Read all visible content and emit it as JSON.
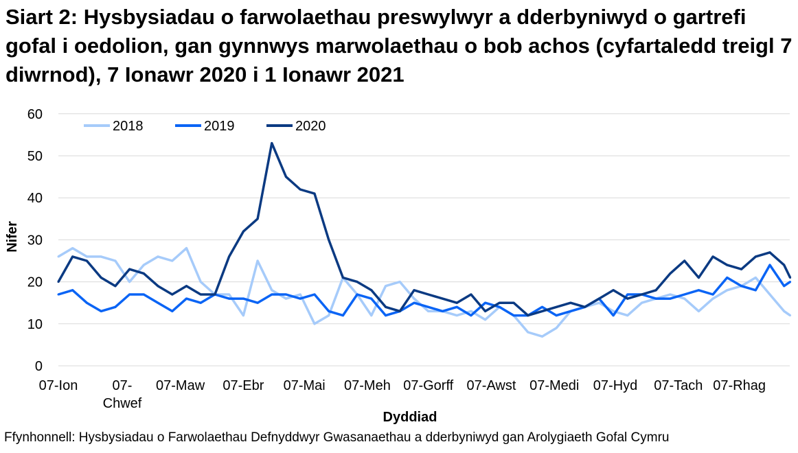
{
  "title": "Siart 2: Hysbysiadau o farwolaethau preswylwyr a dderbyniwyd o gartrefi gofal i oedolion, gan gynnwys marwolaethau o bob achos (cyfartaledd treigl 7 diwrnod), 7 Ionawr 2020 i 1 Ionawr 2021",
  "source": "Ffynhonnell: Hysbysiadau o Farwolaethau Defnyddwyr Gwasanaethau a dderbyniwyd gan Arolygiaeth Gofal Cymru",
  "chart_data": {
    "type": "line",
    "xlabel": "Dyddiad",
    "ylabel": "Nifer",
    "ylim": [
      0,
      60
    ],
    "yticks": [
      0,
      10,
      20,
      30,
      40,
      50,
      60
    ],
    "grid": true,
    "legend": "top-left",
    "xticks": [
      {
        "label": "07-Ion",
        "date": "2020-01-07"
      },
      {
        "label": "07-Chwef",
        "date": "2020-02-07"
      },
      {
        "label": "07-Maw",
        "date": "2020-03-07"
      },
      {
        "label": "07-Ebr",
        "date": "2020-04-07"
      },
      {
        "label": "07-Mai",
        "date": "2020-05-07"
      },
      {
        "label": "07-Meh",
        "date": "2020-06-07"
      },
      {
        "label": "07-Gorff",
        "date": "2020-07-07"
      },
      {
        "label": "07-Awst",
        "date": "2020-08-07"
      },
      {
        "label": "07-Medi",
        "date": "2020-09-07"
      },
      {
        "label": "07-Hyd",
        "date": "2020-10-07"
      },
      {
        "label": "07-Tach",
        "date": "2020-11-07"
      },
      {
        "label": "07-Rhag",
        "date": "2020-12-07"
      }
    ],
    "x": [
      "2020-01-07",
      "2020-01-14",
      "2020-01-21",
      "2020-01-28",
      "2020-02-04",
      "2020-02-11",
      "2020-02-18",
      "2020-02-25",
      "2020-03-03",
      "2020-03-10",
      "2020-03-17",
      "2020-03-24",
      "2020-03-31",
      "2020-04-07",
      "2020-04-14",
      "2020-04-21",
      "2020-04-28",
      "2020-05-05",
      "2020-05-12",
      "2020-05-19",
      "2020-05-26",
      "2020-06-02",
      "2020-06-09",
      "2020-06-16",
      "2020-06-23",
      "2020-06-30",
      "2020-07-07",
      "2020-07-14",
      "2020-07-21",
      "2020-07-28",
      "2020-08-04",
      "2020-08-11",
      "2020-08-18",
      "2020-08-25",
      "2020-09-01",
      "2020-09-08",
      "2020-09-15",
      "2020-09-22",
      "2020-09-29",
      "2020-10-06",
      "2020-10-13",
      "2020-10-20",
      "2020-10-27",
      "2020-11-03",
      "2020-11-10",
      "2020-11-17",
      "2020-11-24",
      "2020-12-01",
      "2020-12-08",
      "2020-12-15",
      "2020-12-22",
      "2020-12-29",
      "2021-01-01"
    ],
    "series": [
      {
        "name": "2018",
        "color": "#a6cbfa",
        "values": [
          26,
          28,
          26,
          26,
          25,
          20,
          24,
          26,
          25,
          28,
          20,
          17,
          17,
          12,
          25,
          18,
          16,
          17,
          10,
          12,
          21,
          17,
          12,
          19,
          20,
          16,
          13,
          13,
          12,
          13,
          11,
          14,
          12,
          8,
          7,
          9,
          13,
          14,
          15,
          13,
          12,
          15,
          16,
          17,
          16,
          13,
          16,
          18,
          19,
          21,
          17,
          13,
          12
        ]
      },
      {
        "name": "2019",
        "color": "#0a64f5",
        "values": [
          17,
          18,
          15,
          13,
          14,
          17,
          17,
          15,
          13,
          16,
          15,
          17,
          16,
          16,
          15,
          17,
          17,
          16,
          17,
          13,
          12,
          17,
          16,
          12,
          13,
          15,
          14,
          13,
          14,
          12,
          15,
          14,
          12,
          12,
          14,
          12,
          13,
          14,
          16,
          12,
          17,
          17,
          16,
          16,
          17,
          18,
          17,
          21,
          19,
          18,
          24,
          19,
          20
        ]
      },
      {
        "name": "2020",
        "color": "#0b3a82",
        "values": [
          20,
          26,
          25,
          21,
          19,
          23,
          22,
          19,
          17,
          19,
          17,
          17,
          26,
          32,
          35,
          53,
          45,
          42,
          41,
          30,
          21,
          20,
          18,
          14,
          13,
          18,
          17,
          16,
          15,
          17,
          13,
          15,
          15,
          12,
          13,
          14,
          15,
          14,
          16,
          18,
          16,
          17,
          18,
          22,
          25,
          21,
          26,
          24,
          23,
          26,
          27,
          24,
          21
        ]
      }
    ]
  }
}
